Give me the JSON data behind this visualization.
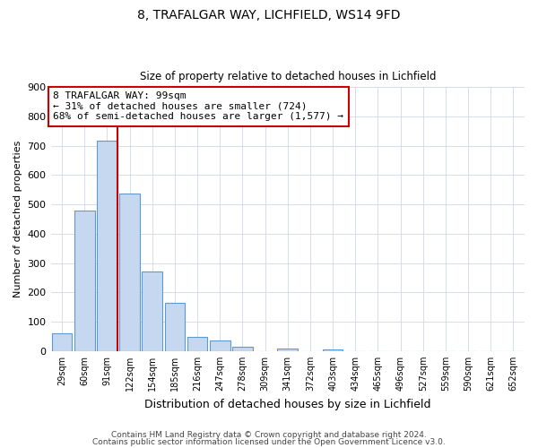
{
  "title1": "8, TRAFALGAR WAY, LICHFIELD, WS14 9FD",
  "title2": "Size of property relative to detached houses in Lichfield",
  "xlabel": "Distribution of detached houses by size in Lichfield",
  "ylabel": "Number of detached properties",
  "bar_labels": [
    "29sqm",
    "60sqm",
    "91sqm",
    "122sqm",
    "154sqm",
    "185sqm",
    "216sqm",
    "247sqm",
    "278sqm",
    "309sqm",
    "341sqm",
    "372sqm",
    "403sqm",
    "434sqm",
    "465sqm",
    "496sqm",
    "527sqm",
    "559sqm",
    "590sqm",
    "621sqm",
    "652sqm"
  ],
  "bar_values": [
    60,
    478,
    718,
    538,
    272,
    163,
    48,
    35,
    15,
    0,
    8,
    0,
    7,
    0,
    0,
    0,
    0,
    0,
    0,
    0,
    0
  ],
  "bar_color": "#c5d8f0",
  "bar_edge_color": "#5b9bd5",
  "vline_pos": 2.45,
  "vline_color": "#cc0000",
  "annotation_text": "8 TRAFALGAR WAY: 99sqm\n← 31% of detached houses are smaller (724)\n68% of semi-detached houses are larger (1,577) →",
  "annotation_box_color": "#ffffff",
  "annotation_box_edge": "#cc0000",
  "ylim": [
    0,
    900
  ],
  "yticks": [
    0,
    100,
    200,
    300,
    400,
    500,
    600,
    700,
    800,
    900
  ],
  "footer1": "Contains HM Land Registry data © Crown copyright and database right 2024.",
  "footer2": "Contains public sector information licensed under the Open Government Licence v3.0.",
  "bg_color": "#ffffff",
  "grid_color": "#d0d8e8"
}
